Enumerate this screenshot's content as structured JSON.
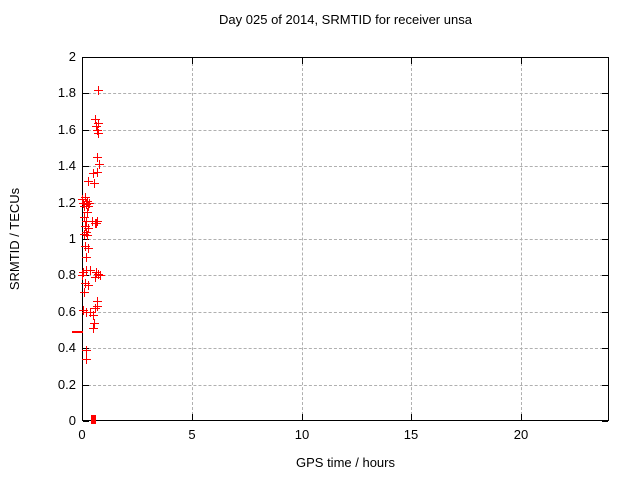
{
  "window": {
    "background": "#ffffff"
  },
  "colors": {
    "marker": "#ff0000",
    "grid": "#b0b0b0",
    "axis": "#000000",
    "text": "#000000",
    "background": "#ffffff"
  },
  "chart_data": {
    "type": "scatter",
    "title": "Day 025 of 2014, SRMTID for receiver unsa",
    "xlabel": "GPS time / hours",
    "ylabel": "SRMTID / TECUs",
    "xlim": [
      0,
      24
    ],
    "ylim": [
      0,
      2
    ],
    "xticks": {
      "values": [
        0,
        5,
        10,
        15,
        20
      ],
      "labels": [
        "0",
        "5",
        "10",
        "15",
        "20"
      ]
    },
    "yticks": {
      "values": [
        0,
        0.2,
        0.4,
        0.6,
        0.8,
        1.0,
        1.2,
        1.4,
        1.6,
        1.8,
        2.0
      ],
      "labels": [
        "0",
        "0.2",
        "0.4",
        "0.6",
        "0.8",
        "1",
        "1.2",
        "1.4",
        "1.6",
        "1.8",
        "2"
      ]
    },
    "grid": true,
    "legend": false,
    "marker": "plus",
    "marker_color": "#ff0000",
    "series": [
      {
        "name": "SRMTID",
        "points": [
          [
            0.73,
            1.82
          ],
          [
            0.59,
            1.66
          ],
          [
            0.73,
            1.64
          ],
          [
            0.64,
            1.62
          ],
          [
            0.68,
            1.6
          ],
          [
            0.73,
            1.58
          ],
          [
            0.68,
            1.45
          ],
          [
            0.77,
            1.41
          ],
          [
            0.5,
            1.36
          ],
          [
            0.68,
            1.37
          ],
          [
            0.27,
            1.32
          ],
          [
            0.55,
            1.31
          ],
          [
            0.14,
            1.23
          ],
          [
            0.0,
            1.22
          ],
          [
            0.23,
            1.21
          ],
          [
            0.05,
            1.2
          ],
          [
            0.32,
            1.2
          ],
          [
            0.18,
            1.19
          ],
          [
            0.09,
            1.18
          ],
          [
            0.27,
            1.18
          ],
          [
            0.23,
            1.15
          ],
          [
            0.09,
            1.12
          ],
          [
            0.18,
            1.1
          ],
          [
            0.45,
            1.1
          ],
          [
            0.68,
            1.1
          ],
          [
            0.59,
            1.09
          ],
          [
            0.64,
            1.09
          ],
          [
            0.14,
            1.07
          ],
          [
            0.27,
            1.06
          ],
          [
            0.18,
            1.04
          ],
          [
            0.09,
            1.03
          ],
          [
            0.23,
            1.02
          ],
          [
            0.14,
            0.96
          ],
          [
            0.27,
            0.95
          ],
          [
            0.18,
            0.9
          ],
          [
            0.18,
            0.83
          ],
          [
            0.36,
            0.83
          ],
          [
            0.05,
            0.82
          ],
          [
            0.64,
            0.82
          ],
          [
            0.0,
            0.8
          ],
          [
            0.73,
            0.81
          ],
          [
            0.82,
            0.8
          ],
          [
            0.59,
            0.79
          ],
          [
            0.14,
            0.76
          ],
          [
            0.27,
            0.75
          ],
          [
            0.09,
            0.71
          ],
          [
            0.68,
            0.66
          ],
          [
            0.68,
            0.63
          ],
          [
            0.59,
            0.62
          ],
          [
            0.05,
            0.61
          ],
          [
            0.18,
            0.6
          ],
          [
            0.36,
            0.6
          ],
          [
            0.5,
            0.58
          ],
          [
            0.55,
            0.54
          ],
          [
            0.5,
            0.51
          ],
          [
            0.2,
            0.39
          ],
          [
            0.2,
            0.34
          ]
        ]
      }
    ],
    "extra_marks": [
      {
        "type": "dash",
        "x": -0.25,
        "y": 0.49
      },
      {
        "type": "square",
        "x": 0.48,
        "y": 0.01
      }
    ]
  }
}
